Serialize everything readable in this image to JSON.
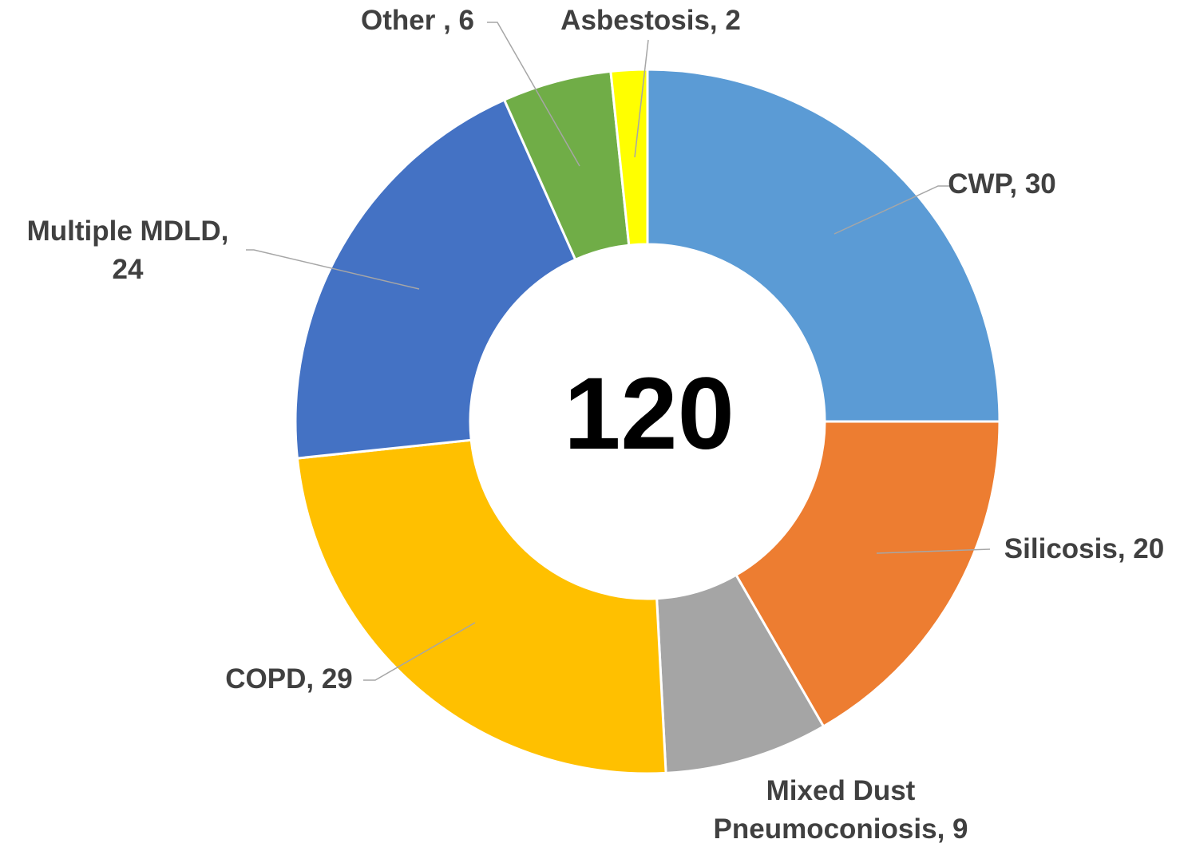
{
  "chart_data": {
    "type": "donut",
    "values": [
      30,
      20,
      9,
      29,
      24,
      6,
      2
    ],
    "value_labels": [
      "CWP, 30",
      "Silicosis, 20",
      "Mixed Dust\nPneumoconiosis, 9",
      "COPD, 29",
      "Multiple MDLD,\n24",
      "Other , 6",
      "Asbestosis, 2"
    ],
    "colors": [
      "#5b9bd5",
      "#ed7d31",
      "#a5a5a5",
      "#ffc000",
      "#4472c4",
      "#70ad47",
      "#ffff00"
    ],
    "total": 120
  }
}
